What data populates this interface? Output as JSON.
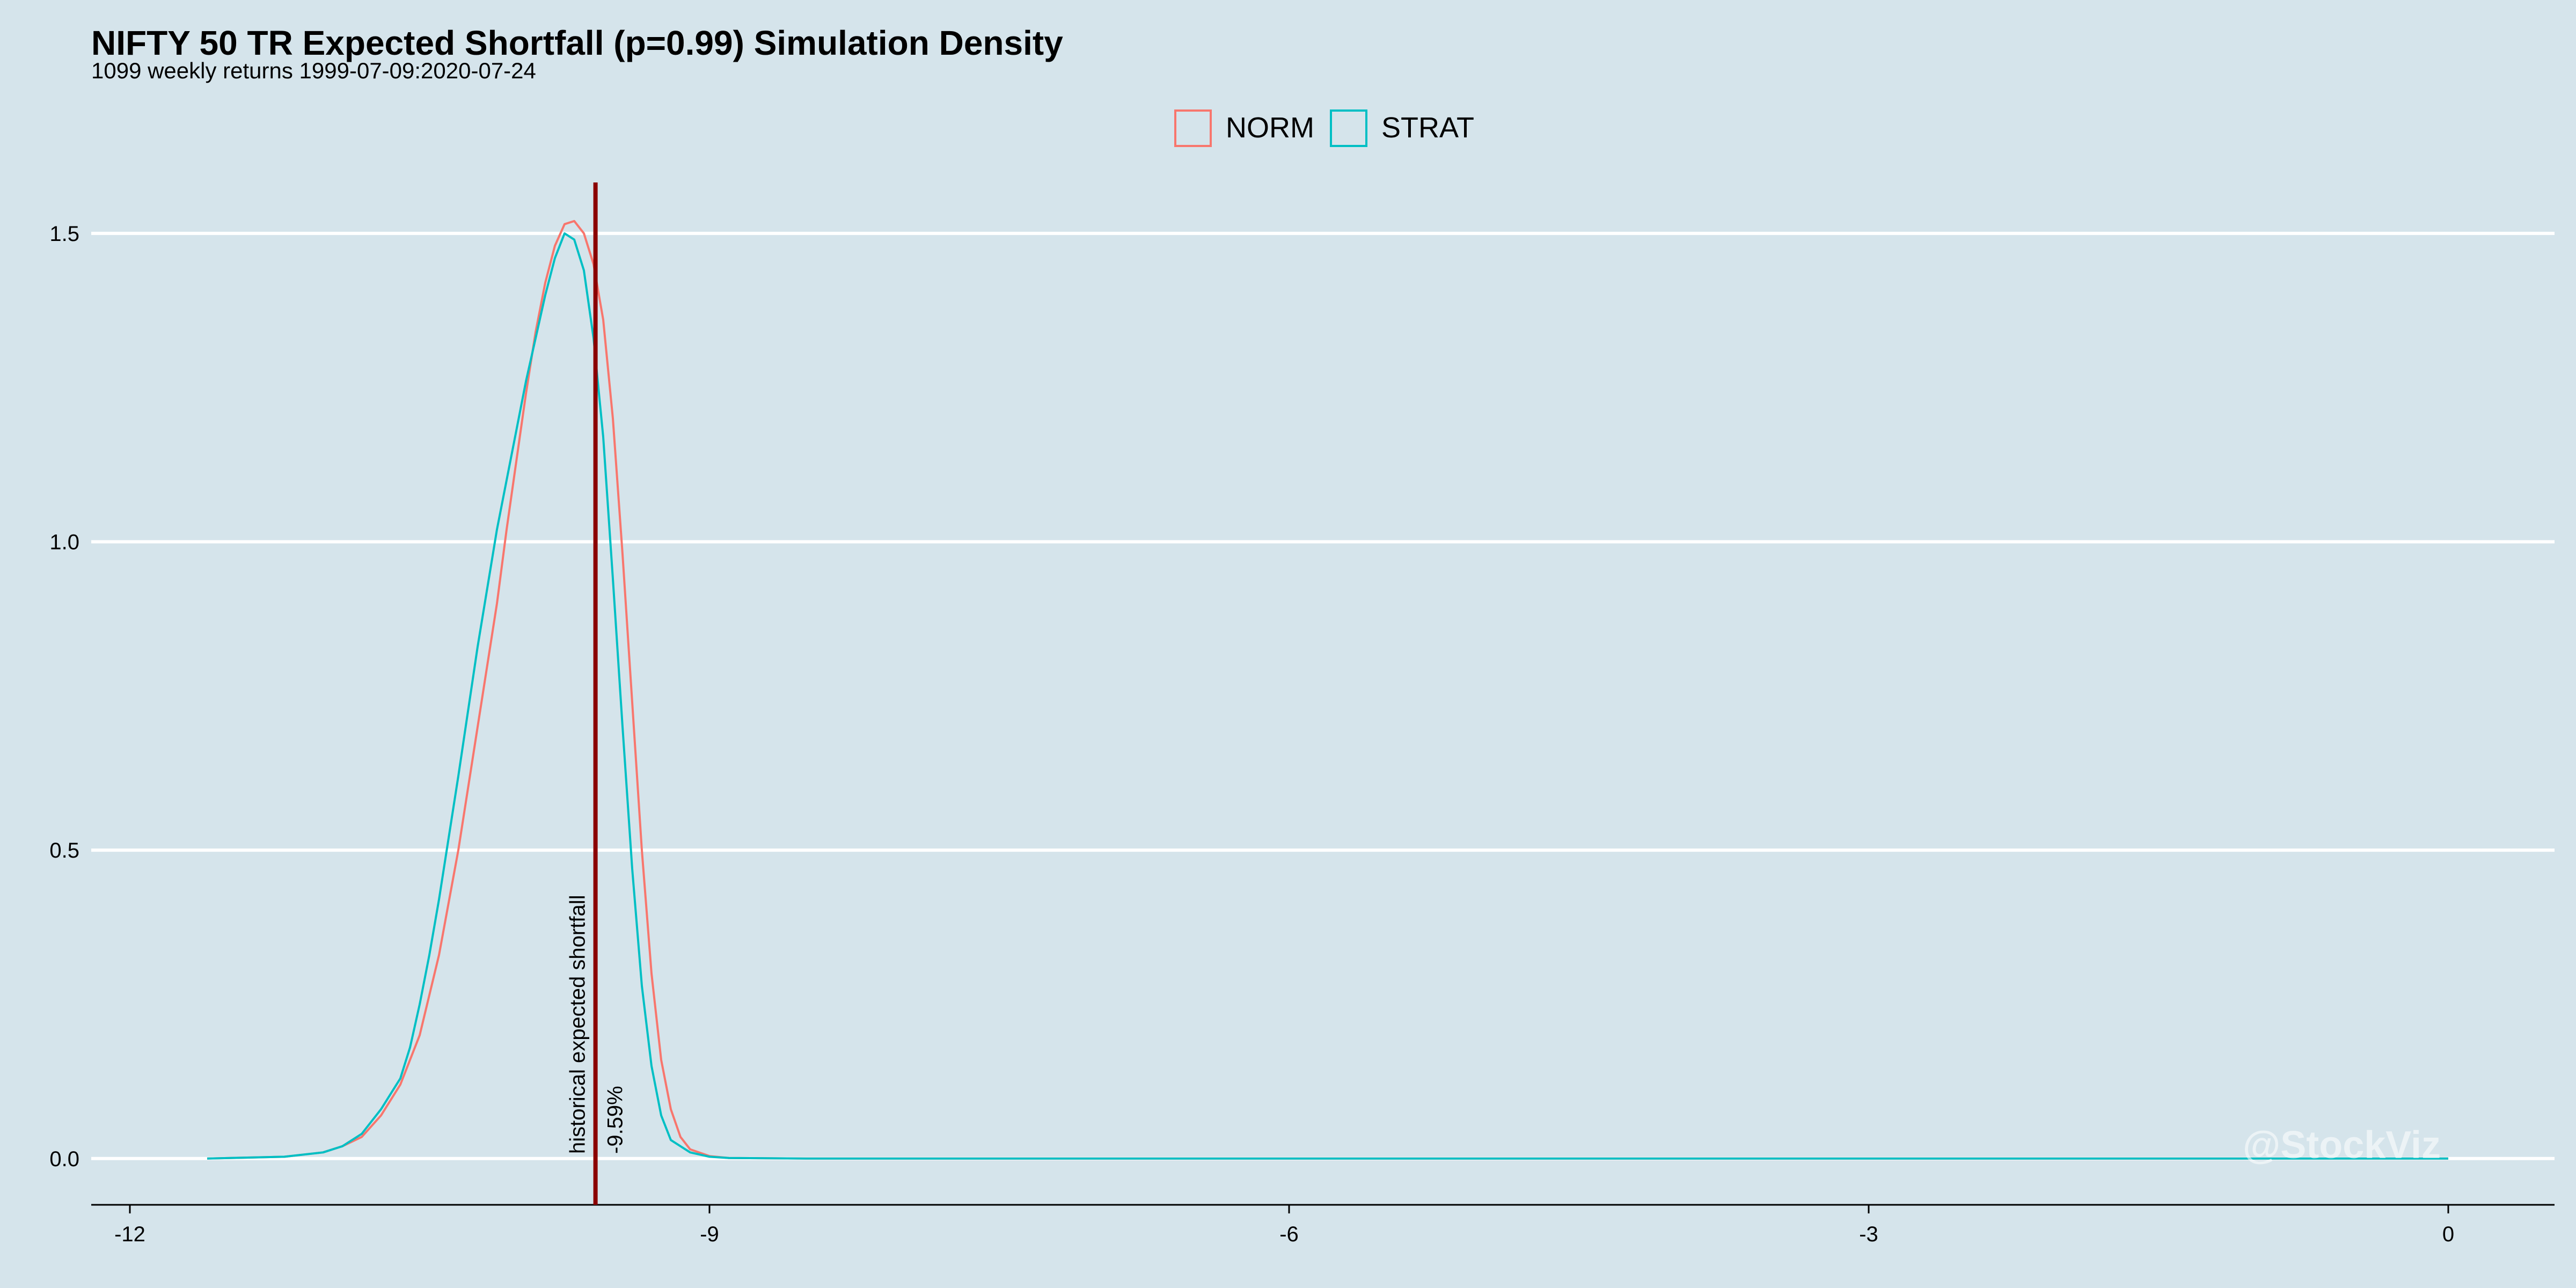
{
  "chart_data": {
    "type": "line",
    "title": "NIFTY 50 TR Expected Shortfall (p=0.99) Simulation Density",
    "subtitle": "1099 weekly returns 1999-07-09:2020-07-24",
    "xlabel": "",
    "ylabel": "",
    "xlim": [
      -12.2,
      0.55
    ],
    "ylim": [
      -0.075,
      1.6
    ],
    "x_ticks": [
      -12,
      -9,
      -6,
      -3,
      0
    ],
    "x_tick_labels": [
      "-12",
      "-9",
      "-6",
      "-3",
      "0"
    ],
    "y_ticks": [
      0.0,
      0.5,
      1.0,
      1.5
    ],
    "y_tick_labels": [
      "0.0",
      "0.5",
      "1.0",
      "1.5"
    ],
    "grid": "horizontal",
    "legend": "top-center",
    "series": [
      {
        "name": "NORM",
        "color": "#f8766d",
        "x": [
          -11.6,
          -11.2,
          -11.0,
          -10.9,
          -10.8,
          -10.7,
          -10.6,
          -10.5,
          -10.4,
          -10.3,
          -10.2,
          -10.1,
          -10.05,
          -10.0,
          -9.95,
          -9.9,
          -9.85,
          -9.8,
          -9.75,
          -9.7,
          -9.65,
          -9.6,
          -9.55,
          -9.5,
          -9.45,
          -9.4,
          -9.35,
          -9.3,
          -9.25,
          -9.2,
          -9.15,
          -9.1,
          -9.0,
          -8.9,
          -8.5,
          0.0
        ],
        "y": [
          0.0,
          0.003,
          0.01,
          0.02,
          0.035,
          0.07,
          0.12,
          0.2,
          0.33,
          0.5,
          0.7,
          0.9,
          1.02,
          1.13,
          1.24,
          1.34,
          1.42,
          1.48,
          1.515,
          1.52,
          1.5,
          1.45,
          1.36,
          1.2,
          0.98,
          0.74,
          0.5,
          0.3,
          0.16,
          0.08,
          0.035,
          0.015,
          0.004,
          0.001,
          0.0,
          0.0
        ]
      },
      {
        "name": "STRAT",
        "color": "#00bfc4",
        "x": [
          -11.6,
          -11.2,
          -11.0,
          -10.9,
          -10.8,
          -10.7,
          -10.6,
          -10.55,
          -10.5,
          -10.45,
          -10.4,
          -10.3,
          -10.2,
          -10.1,
          -10.0,
          -9.95,
          -9.9,
          -9.85,
          -9.8,
          -9.75,
          -9.7,
          -9.65,
          -9.6,
          -9.55,
          -9.5,
          -9.45,
          -9.4,
          -9.35,
          -9.3,
          -9.25,
          -9.2,
          -9.1,
          -9.0,
          -8.9,
          -8.5,
          0.0
        ],
        "y": [
          0.0,
          0.003,
          0.01,
          0.02,
          0.04,
          0.08,
          0.13,
          0.18,
          0.25,
          0.33,
          0.42,
          0.62,
          0.83,
          1.02,
          1.18,
          1.26,
          1.33,
          1.4,
          1.46,
          1.5,
          1.49,
          1.44,
          1.33,
          1.17,
          0.94,
          0.7,
          0.47,
          0.28,
          0.15,
          0.07,
          0.03,
          0.01,
          0.003,
          0.001,
          0.0,
          0.0
        ]
      }
    ],
    "reference_line": {
      "x": -9.59,
      "color": "#8b0000",
      "label": "historical expected shortfall",
      "value_label": "-9.59%"
    },
    "watermark": "@StockViz"
  }
}
